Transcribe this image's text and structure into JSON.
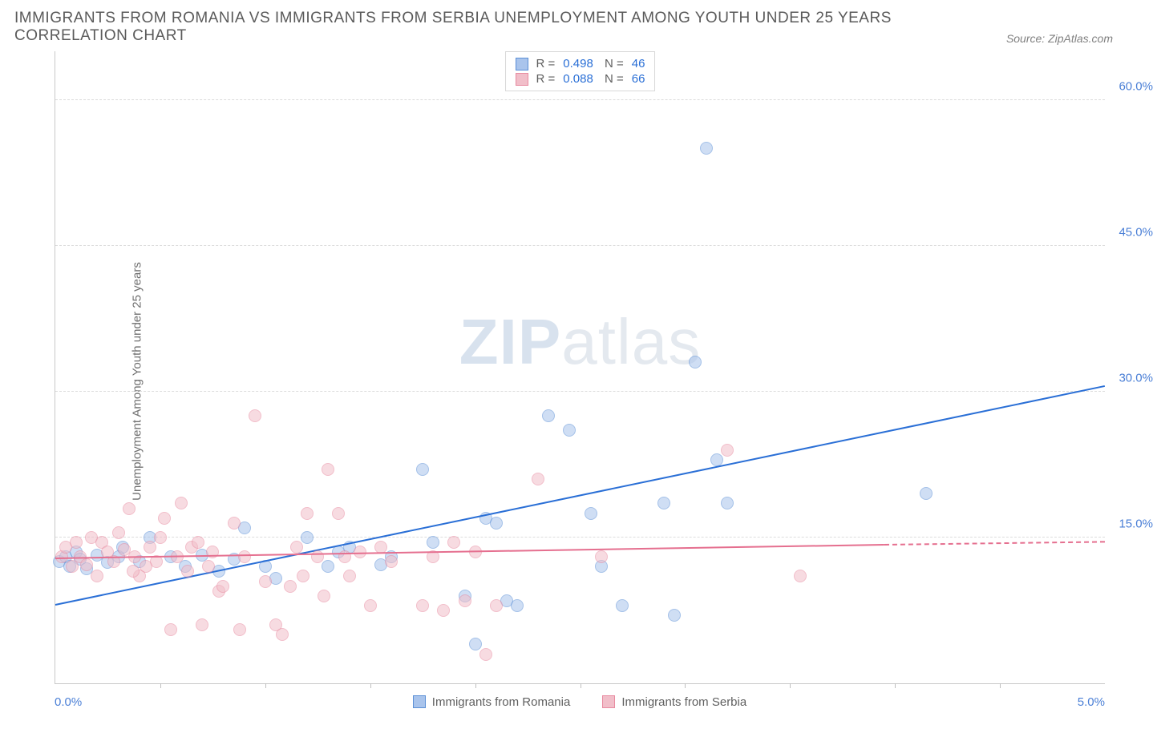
{
  "title": "IMMIGRANTS FROM ROMANIA VS IMMIGRANTS FROM SERBIA UNEMPLOYMENT AMONG YOUTH UNDER 25 YEARS CORRELATION CHART",
  "source": "Source: ZipAtlas.com",
  "ylabel": "Unemployment Among Youth under 25 years",
  "watermark_a": "ZIP",
  "watermark_b": "atlas",
  "chart": {
    "type": "scatter",
    "xlim": [
      0,
      5
    ],
    "ylim": [
      0,
      65
    ],
    "x_tick_positions": [
      0.5,
      1.0,
      1.5,
      2.0,
      2.5,
      3.0,
      3.5,
      4.0,
      4.5
    ],
    "y_ticks": [
      {
        "v": 15,
        "label": "15.0%"
      },
      {
        "v": 30,
        "label": "30.0%"
      },
      {
        "v": 45,
        "label": "45.0%"
      },
      {
        "v": 60,
        "label": "60.0%"
      }
    ],
    "x_axis_left_label": "0.0%",
    "x_axis_right_label": "5.0%",
    "background_color": "#ffffff",
    "grid_color": "#dcdcdc",
    "axis_label_color": "#4a7fd6",
    "point_radius": 8,
    "point_opacity": 0.55,
    "series": [
      {
        "name": "Immigrants from Romania",
        "fill": "#a9c4ec",
        "stroke": "#5b8fd6",
        "r_value": "0.498",
        "n_value": "46",
        "trend": {
          "x1": 0,
          "y1": 8.0,
          "x2": 5.0,
          "y2": 30.5,
          "solid_until_x": 5.0,
          "color": "#2a6fd6"
        },
        "points": [
          [
            0.02,
            12.5
          ],
          [
            0.05,
            13.0
          ],
          [
            0.07,
            12.0
          ],
          [
            0.1,
            13.5
          ],
          [
            0.12,
            12.8
          ],
          [
            0.15,
            11.8
          ],
          [
            0.2,
            13.2
          ],
          [
            0.25,
            12.4
          ],
          [
            0.3,
            13.0
          ],
          [
            0.32,
            14.0
          ],
          [
            0.4,
            12.5
          ],
          [
            0.45,
            15.0
          ],
          [
            0.55,
            13.0
          ],
          [
            0.62,
            12.0
          ],
          [
            0.7,
            13.2
          ],
          [
            0.78,
            11.5
          ],
          [
            0.85,
            12.8
          ],
          [
            0.9,
            16.0
          ],
          [
            1.0,
            12.0
          ],
          [
            1.05,
            10.8
          ],
          [
            1.2,
            15.0
          ],
          [
            1.3,
            12.0
          ],
          [
            1.35,
            13.5
          ],
          [
            1.4,
            14.0
          ],
          [
            1.55,
            12.2
          ],
          [
            1.6,
            13.0
          ],
          [
            1.75,
            22.0
          ],
          [
            1.8,
            14.5
          ],
          [
            1.95,
            9.0
          ],
          [
            2.05,
            17.0
          ],
          [
            2.1,
            16.5
          ],
          [
            2.0,
            4.0
          ],
          [
            2.15,
            8.5
          ],
          [
            2.2,
            8.0
          ],
          [
            2.35,
            27.5
          ],
          [
            2.45,
            26.0
          ],
          [
            2.55,
            17.5
          ],
          [
            2.6,
            12.0
          ],
          [
            2.7,
            8.0
          ],
          [
            2.9,
            18.5
          ],
          [
            2.95,
            7.0
          ],
          [
            3.05,
            33.0
          ],
          [
            3.1,
            55.0
          ],
          [
            3.15,
            23.0
          ],
          [
            3.2,
            18.5
          ],
          [
            4.15,
            19.5
          ]
        ]
      },
      {
        "name": "Immigrants from Serbia",
        "fill": "#f1bec9",
        "stroke": "#e88aa0",
        "r_value": "0.088",
        "n_value": "66",
        "trend": {
          "x1": 0,
          "y1": 12.8,
          "x2": 3.95,
          "y2": 14.2,
          "solid_until_x": 3.95,
          "dash_to_x": 5.0,
          "dash_to_y": 14.5,
          "color": "#e56f8f"
        },
        "points": [
          [
            0.03,
            13.0
          ],
          [
            0.05,
            14.0
          ],
          [
            0.08,
            12.0
          ],
          [
            0.1,
            14.5
          ],
          [
            0.12,
            13.0
          ],
          [
            0.15,
            12.2
          ],
          [
            0.17,
            15.0
          ],
          [
            0.2,
            11.0
          ],
          [
            0.22,
            14.5
          ],
          [
            0.25,
            13.5
          ],
          [
            0.28,
            12.5
          ],
          [
            0.3,
            15.5
          ],
          [
            0.35,
            18.0
          ],
          [
            0.38,
            13.0
          ],
          [
            0.4,
            11.0
          ],
          [
            0.45,
            14.0
          ],
          [
            0.48,
            12.5
          ],
          [
            0.52,
            17.0
          ],
          [
            0.55,
            5.5
          ],
          [
            0.58,
            13.0
          ],
          [
            0.6,
            18.5
          ],
          [
            0.65,
            14.0
          ],
          [
            0.7,
            6.0
          ],
          [
            0.75,
            13.5
          ],
          [
            0.78,
            9.5
          ],
          [
            0.8,
            10.0
          ],
          [
            0.85,
            16.5
          ],
          [
            0.9,
            13.0
          ],
          [
            0.95,
            27.5
          ],
          [
            1.0,
            10.5
          ],
          [
            1.05,
            6.0
          ],
          [
            1.08,
            5.0
          ],
          [
            1.12,
            10.0
          ],
          [
            1.15,
            14.0
          ],
          [
            1.2,
            17.5
          ],
          [
            1.25,
            13.0
          ],
          [
            1.3,
            22.0
          ],
          [
            1.35,
            17.5
          ],
          [
            1.4,
            11.0
          ],
          [
            1.45,
            13.5
          ],
          [
            1.5,
            8.0
          ],
          [
            1.55,
            14.0
          ],
          [
            1.6,
            12.5
          ],
          [
            1.75,
            8.0
          ],
          [
            1.8,
            13.0
          ],
          [
            1.85,
            7.5
          ],
          [
            1.9,
            14.5
          ],
          [
            1.95,
            8.5
          ],
          [
            2.0,
            13.5
          ],
          [
            2.05,
            3.0
          ],
          [
            2.1,
            8.0
          ],
          [
            2.3,
            21.0
          ],
          [
            2.6,
            13.0
          ],
          [
            3.2,
            24.0
          ],
          [
            3.55,
            11.0
          ],
          [
            0.33,
            13.8
          ],
          [
            0.37,
            11.5
          ],
          [
            0.43,
            12.0
          ],
          [
            0.5,
            15.0
          ],
          [
            0.63,
            11.5
          ],
          [
            0.68,
            14.5
          ],
          [
            0.73,
            12.0
          ],
          [
            0.88,
            5.5
          ],
          [
            1.18,
            11.0
          ],
          [
            1.28,
            9.0
          ],
          [
            1.38,
            13.0
          ]
        ]
      }
    ]
  }
}
